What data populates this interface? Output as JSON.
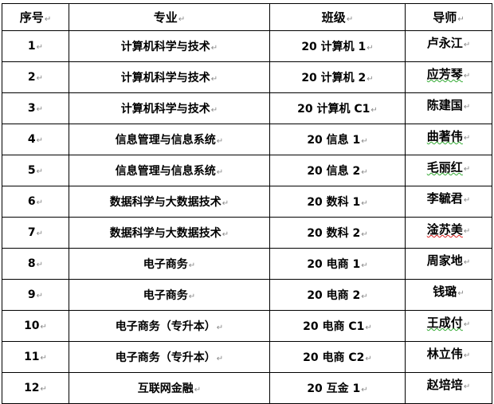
{
  "headers": [
    "序号",
    "专业",
    "班级",
    "导师"
  ],
  "rows": [
    {
      "no": "1",
      "major": "计算机科学与技术",
      "class": "20 计算机 1",
      "tutor": "卢永江",
      "mark": ""
    },
    {
      "no": "2",
      "major": "计算机科学与技术",
      "class": "20 计算机 2",
      "tutor": "应芳琴",
      "mark": "green"
    },
    {
      "no": "3",
      "major": "计算机科学与技术",
      "class": "20 计算机 C1",
      "tutor": "陈建国",
      "mark": ""
    },
    {
      "no": "4",
      "major": "信息管理与信息系统",
      "class": "20 信息 1",
      "tutor": "曲著伟",
      "mark": "green"
    },
    {
      "no": "5",
      "major": "信息管理与信息系统",
      "class": "20 信息 2",
      "tutor": "毛丽红",
      "mark": "green"
    },
    {
      "no": "6",
      "major": "数据科学与大数据技术",
      "class": "20 数科 1",
      "tutor": "李毓君",
      "mark": ""
    },
    {
      "no": "7",
      "major": "数据科学与大数据技术",
      "class": "20 数科 2",
      "tutor": "淦苏美",
      "mark": "red"
    },
    {
      "no": "8",
      "major": "电子商务",
      "class": "20 电商 1",
      "tutor": "周家地",
      "mark": ""
    },
    {
      "no": "9",
      "major": "电子商务",
      "class": "20 电商 2",
      "tutor": "钱璐",
      "mark": ""
    },
    {
      "no": "10",
      "major": "电子商务（专升本）",
      "class": "20 电商 C1",
      "tutor": "王成付",
      "mark": "green"
    },
    {
      "no": "11",
      "major": "电子商务（专升本）",
      "class": "20 电商 C2",
      "tutor": "林立伟",
      "mark": ""
    },
    {
      "no": "12",
      "major": "互联网金融",
      "class": "20 互金 1",
      "tutor": "赵培培",
      "mark": ""
    }
  ]
}
